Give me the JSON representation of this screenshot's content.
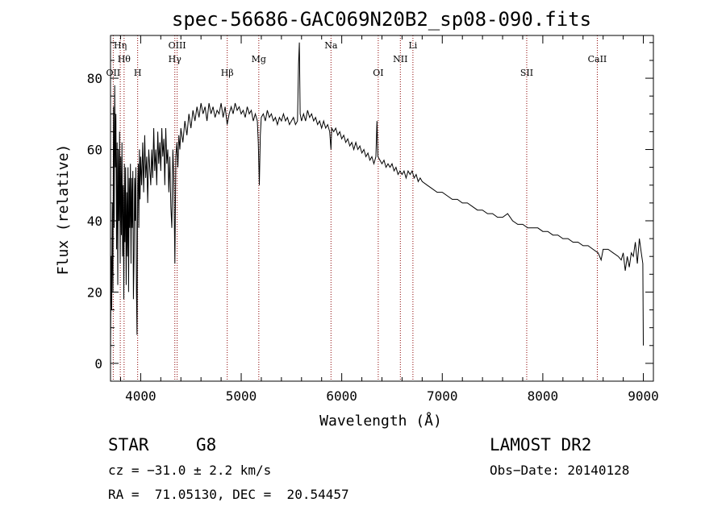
{
  "chart_data": {
    "type": "line",
    "title": "spec-56686-GAC069N20B2_sp08-090.fits",
    "xlabel": "Wavelength (Å)",
    "ylabel": "Flux (relative)",
    "xlim": [
      3700,
      9100
    ],
    "ylim": [
      -5,
      92
    ],
    "xticks": [
      4000,
      5000,
      6000,
      7000,
      8000,
      9000
    ],
    "yticks": [
      0,
      20,
      40,
      60,
      80
    ],
    "line_color": "#000000",
    "marker_color": "#8b0000",
    "series": [
      {
        "values": [
          [
            3700,
            2
          ],
          [
            3706,
            30
          ],
          [
            3712,
            15
          ],
          [
            3718,
            45
          ],
          [
            3724,
            20
          ],
          [
            3730,
            72
          ],
          [
            3736,
            38
          ],
          [
            3742,
            78
          ],
          [
            3748,
            55
          ],
          [
            3754,
            70
          ],
          [
            3760,
            32
          ],
          [
            3766,
            62
          ],
          [
            3772,
            22
          ],
          [
            3778,
            60
          ],
          [
            3784,
            40
          ],
          [
            3790,
            65
          ],
          [
            3796,
            28
          ],
          [
            3802,
            58
          ],
          [
            3808,
            36
          ],
          [
            3814,
            62
          ],
          [
            3820,
            30
          ],
          [
            3826,
            50
          ],
          [
            3832,
            18
          ],
          [
            3838,
            56
          ],
          [
            3844,
            34
          ],
          [
            3850,
            55
          ],
          [
            3856,
            22
          ],
          [
            3862,
            48
          ],
          [
            3868,
            30
          ],
          [
            3874,
            55
          ],
          [
            3880,
            20
          ],
          [
            3886,
            52
          ],
          [
            3892,
            38
          ],
          [
            3898,
            56
          ],
          [
            3904,
            28
          ],
          [
            3910,
            52
          ],
          [
            3916,
            38
          ],
          [
            3922,
            54
          ],
          [
            3928,
            18
          ],
          [
            3934,
            30
          ],
          [
            3940,
            52
          ],
          [
            3946,
            40
          ],
          [
            3952,
            55
          ],
          [
            3958,
            20
          ],
          [
            3964,
            8
          ],
          [
            3970,
            50
          ],
          [
            3976,
            56
          ],
          [
            3982,
            38
          ],
          [
            3988,
            60
          ],
          [
            3994,
            46
          ],
          [
            4000,
            58
          ],
          [
            4010,
            50
          ],
          [
            4020,
            62
          ],
          [
            4030,
            48
          ],
          [
            4040,
            64
          ],
          [
            4050,
            52
          ],
          [
            4060,
            58
          ],
          [
            4070,
            45
          ],
          [
            4080,
            60
          ],
          [
            4090,
            55
          ],
          [
            4100,
            50
          ],
          [
            4110,
            60
          ],
          [
            4120,
            52
          ],
          [
            4130,
            66
          ],
          [
            4140,
            54
          ],
          [
            4150,
            60
          ],
          [
            4160,
            50
          ],
          [
            4170,
            65
          ],
          [
            4180,
            56
          ],
          [
            4190,
            62
          ],
          [
            4200,
            54
          ],
          [
            4210,
            66
          ],
          [
            4220,
            58
          ],
          [
            4230,
            63
          ],
          [
            4240,
            50
          ],
          [
            4250,
            66
          ],
          [
            4260,
            56
          ],
          [
            4270,
            60
          ],
          [
            4280,
            48
          ],
          [
            4290,
            58
          ],
          [
            4300,
            44
          ],
          [
            4310,
            38
          ],
          [
            4320,
            60
          ],
          [
            4330,
            52
          ],
          [
            4340,
            28
          ],
          [
            4350,
            58
          ],
          [
            4360,
            62
          ],
          [
            4370,
            55
          ],
          [
            4380,
            64
          ],
          [
            4390,
            60
          ],
          [
            4400,
            66
          ],
          [
            4420,
            62
          ],
          [
            4440,
            68
          ],
          [
            4460,
            64
          ],
          [
            4480,
            70
          ],
          [
            4500,
            66
          ],
          [
            4520,
            71
          ],
          [
            4540,
            68
          ],
          [
            4560,
            72
          ],
          [
            4580,
            69
          ],
          [
            4600,
            73
          ],
          [
            4620,
            70
          ],
          [
            4640,
            72
          ],
          [
            4660,
            68
          ],
          [
            4680,
            73
          ],
          [
            4700,
            70
          ],
          [
            4720,
            72
          ],
          [
            4740,
            69
          ],
          [
            4760,
            71
          ],
          [
            4780,
            70
          ],
          [
            4800,
            73
          ],
          [
            4820,
            69
          ],
          [
            4840,
            72
          ],
          [
            4860,
            67
          ],
          [
            4880,
            70
          ],
          [
            4900,
            72
          ],
          [
            4920,
            70
          ],
          [
            4940,
            73
          ],
          [
            4960,
            71
          ],
          [
            4980,
            72
          ],
          [
            5000,
            70
          ],
          [
            5020,
            71
          ],
          [
            5040,
            69
          ],
          [
            5060,
            72
          ],
          [
            5080,
            70
          ],
          [
            5100,
            71
          ],
          [
            5120,
            68
          ],
          [
            5140,
            70
          ],
          [
            5160,
            68
          ],
          [
            5170,
            62
          ],
          [
            5180,
            50
          ],
          [
            5190,
            64
          ],
          [
            5200,
            69
          ],
          [
            5220,
            70
          ],
          [
            5240,
            68
          ],
          [
            5260,
            71
          ],
          [
            5280,
            69
          ],
          [
            5300,
            70
          ],
          [
            5320,
            68
          ],
          [
            5340,
            69
          ],
          [
            5360,
            67
          ],
          [
            5380,
            69
          ],
          [
            5400,
            68
          ],
          [
            5420,
            70
          ],
          [
            5440,
            68
          ],
          [
            5460,
            69
          ],
          [
            5480,
            67
          ],
          [
            5500,
            68
          ],
          [
            5520,
            69
          ],
          [
            5540,
            67
          ],
          [
            5560,
            68
          ],
          [
            5570,
            84
          ],
          [
            5578,
            90
          ],
          [
            5586,
            70
          ],
          [
            5600,
            68
          ],
          [
            5620,
            70
          ],
          [
            5640,
            68
          ],
          [
            5660,
            71
          ],
          [
            5680,
            69
          ],
          [
            5700,
            70
          ],
          [
            5720,
            68
          ],
          [
            5740,
            69
          ],
          [
            5760,
            67
          ],
          [
            5780,
            68
          ],
          [
            5800,
            66
          ],
          [
            5820,
            68
          ],
          [
            5840,
            66
          ],
          [
            5860,
            67
          ],
          [
            5880,
            65
          ],
          [
            5893,
            60
          ],
          [
            5900,
            66
          ],
          [
            5920,
            65
          ],
          [
            5940,
            66
          ],
          [
            5960,
            64
          ],
          [
            5980,
            65
          ],
          [
            6000,
            63
          ],
          [
            6020,
            64
          ],
          [
            6040,
            62
          ],
          [
            6060,
            63
          ],
          [
            6080,
            61
          ],
          [
            6100,
            62
          ],
          [
            6120,
            60
          ],
          [
            6140,
            62
          ],
          [
            6160,
            60
          ],
          [
            6180,
            61
          ],
          [
            6200,
            59
          ],
          [
            6220,
            60
          ],
          [
            6240,
            58
          ],
          [
            6260,
            59
          ],
          [
            6280,
            57
          ],
          [
            6300,
            58
          ],
          [
            6320,
            56
          ],
          [
            6340,
            58
          ],
          [
            6350,
            68
          ],
          [
            6360,
            58
          ],
          [
            6380,
            57
          ],
          [
            6400,
            56
          ],
          [
            6420,
            57
          ],
          [
            6440,
            55
          ],
          [
            6460,
            56
          ],
          [
            6480,
            55
          ],
          [
            6500,
            56
          ],
          [
            6520,
            54
          ],
          [
            6540,
            55
          ],
          [
            6560,
            53
          ],
          [
            6580,
            54
          ],
          [
            6600,
            53
          ],
          [
            6620,
            54
          ],
          [
            6640,
            52
          ],
          [
            6660,
            54
          ],
          [
            6680,
            53
          ],
          [
            6700,
            54
          ],
          [
            6720,
            52
          ],
          [
            6740,
            53
          ],
          [
            6760,
            51
          ],
          [
            6780,
            52
          ],
          [
            6800,
            51
          ],
          [
            6850,
            50
          ],
          [
            6900,
            49
          ],
          [
            6950,
            48
          ],
          [
            7000,
            48
          ],
          [
            7050,
            47
          ],
          [
            7100,
            46
          ],
          [
            7150,
            46
          ],
          [
            7200,
            45
          ],
          [
            7250,
            45
          ],
          [
            7300,
            44
          ],
          [
            7350,
            43
          ],
          [
            7400,
            43
          ],
          [
            7450,
            42
          ],
          [
            7500,
            42
          ],
          [
            7550,
            41
          ],
          [
            7600,
            41
          ],
          [
            7650,
            42
          ],
          [
            7700,
            40
          ],
          [
            7750,
            39
          ],
          [
            7800,
            39
          ],
          [
            7850,
            38
          ],
          [
            7900,
            38
          ],
          [
            7950,
            38
          ],
          [
            8000,
            37
          ],
          [
            8050,
            37
          ],
          [
            8100,
            36
          ],
          [
            8150,
            36
          ],
          [
            8200,
            35
          ],
          [
            8250,
            35
          ],
          [
            8300,
            34
          ],
          [
            8350,
            34
          ],
          [
            8400,
            33
          ],
          [
            8450,
            33
          ],
          [
            8500,
            32
          ],
          [
            8550,
            31
          ],
          [
            8580,
            29
          ],
          [
            8600,
            32
          ],
          [
            8650,
            32
          ],
          [
            8700,
            31
          ],
          [
            8750,
            30
          ],
          [
            8780,
            29
          ],
          [
            8800,
            31
          ],
          [
            8820,
            26
          ],
          [
            8840,
            30
          ],
          [
            8860,
            27
          ],
          [
            8880,
            31
          ],
          [
            8900,
            30
          ],
          [
            8920,
            34
          ],
          [
            8940,
            28
          ],
          [
            8960,
            35
          ],
          [
            8980,
            31
          ],
          [
            8995,
            28
          ],
          [
            9000,
            5
          ]
        ]
      }
    ],
    "lines": [
      {
        "name": "Hη",
        "x": 3797,
        "row": 1
      },
      {
        "name": "Hθ",
        "x": 3835,
        "row": 2
      },
      {
        "name": "OII",
        "x": 3727,
        "row": 3
      },
      {
        "name": "H",
        "x": 3970,
        "row": 3
      },
      {
        "name": "OIII",
        "x": 4363,
        "row": 1
      },
      {
        "name": "Hγ",
        "x": 4340,
        "row": 2
      },
      {
        "name": "Hβ",
        "x": 4861,
        "row": 3
      },
      {
        "name": "Mg",
        "x": 5175,
        "row": 2
      },
      {
        "name": "Na",
        "x": 5893,
        "row": 1
      },
      {
        "name": "OI",
        "x": 6363,
        "row": 3
      },
      {
        "name": "NII",
        "x": 6583,
        "row": 2
      },
      {
        "name": "Li",
        "x": 6708,
        "row": 1
      },
      {
        "name": "SII",
        "x": 7840,
        "row": 3
      },
      {
        "name": "CaII",
        "x": 8542,
        "row": 2
      }
    ]
  },
  "info": {
    "object_type": "STAR",
    "subclass": "G8",
    "survey": "LAMOST DR2",
    "velocity": "cz = −31.0 ± 2.2 km/s",
    "obs_date": "Obs−Date: 20140128",
    "coords": "RA =  71.05130, DEC =  20.54457"
  }
}
